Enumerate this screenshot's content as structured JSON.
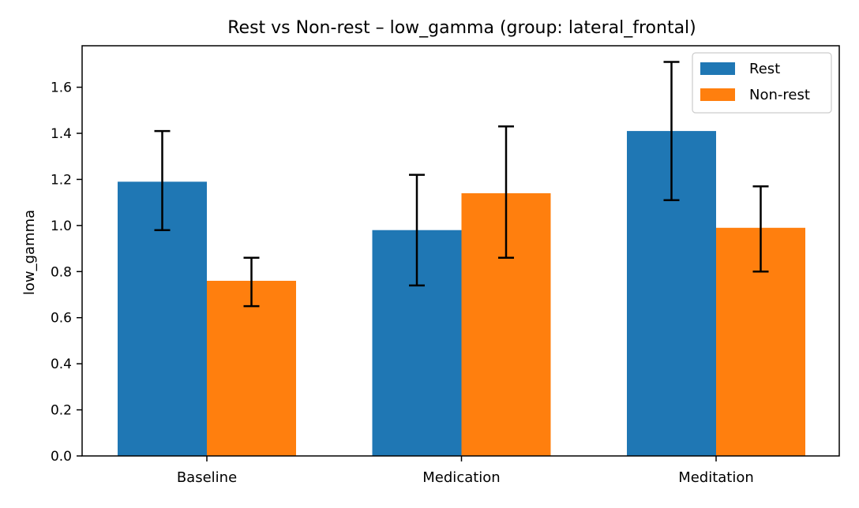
{
  "chart_data": {
    "type": "bar",
    "title": "Rest vs Non-rest – low_gamma  (group: lateral_frontal)",
    "xlabel": "",
    "ylabel": "low_gamma",
    "categories": [
      "Baseline",
      "Medication",
      "Meditation"
    ],
    "series": [
      {
        "name": "Rest",
        "color": "#1f77b4",
        "values": [
          1.19,
          0.98,
          1.41
        ],
        "error_low": [
          0.98,
          0.74,
          1.11
        ],
        "error_high": [
          1.41,
          1.22,
          1.71
        ]
      },
      {
        "name": "Non-rest",
        "color": "#ff7f0e",
        "values": [
          0.76,
          1.14,
          0.99
        ],
        "error_low": [
          0.65,
          0.86,
          0.8
        ],
        "error_high": [
          0.86,
          1.43,
          1.17
        ]
      }
    ],
    "ylim": [
      0,
      1.78
    ],
    "yticks": [
      "0.0",
      "0.2",
      "0.4",
      "0.6",
      "0.8",
      "1.0",
      "1.2",
      "1.4",
      "1.6"
    ],
    "legend_position": "top-right",
    "grid": false
  }
}
